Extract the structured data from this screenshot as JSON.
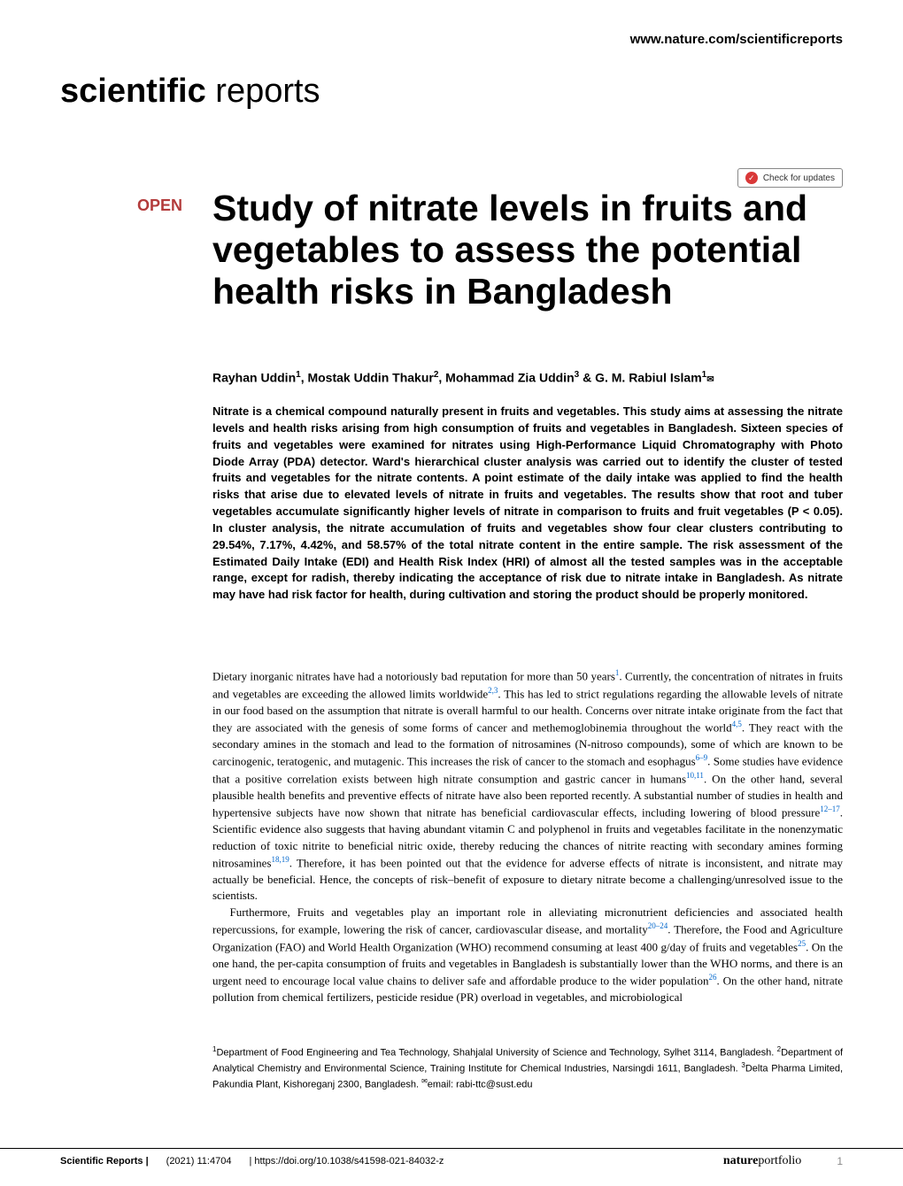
{
  "header": {
    "url": "www.nature.com/scientificreports",
    "logo_bold": "scientific",
    "logo_light": " reports",
    "check_updates": "Check for updates",
    "open_badge": "OPEN"
  },
  "title": "Study of nitrate levels in fruits and vegetables to assess the potential health risks in Bangladesh",
  "authors": {
    "a1_name": "Rayhan Uddin",
    "a1_sup": "1",
    "a2_name": "Mostak Uddin Thakur",
    "a2_sup": "2",
    "a3_name": "Mohammad Zia Uddin",
    "a3_sup": "3",
    "a4_name": "G. M. Rabiul Islam",
    "a4_sup": "1",
    "corr_symbol": "✉"
  },
  "abstract": "Nitrate is a chemical compound naturally present in fruits and vegetables. This study aims at assessing the nitrate levels and health risks arising from high consumption of fruits and vegetables in Bangladesh. Sixteen species of fruits and vegetables were examined for nitrates using High-Performance Liquid Chromatography with Photo Diode Array (PDA) detector. Ward's hierarchical cluster analysis was carried out to identify the cluster of tested fruits and vegetables for the nitrate contents. A point estimate of the daily intake was applied to find the health risks that arise due to elevated levels of nitrate in fruits and vegetables. The results show that root and tuber vegetables accumulate significantly higher levels of nitrate in comparison to fruits and fruit vegetables (P < 0.05). In cluster analysis, the nitrate accumulation of fruits and vegetables show four clear clusters contributing to 29.54%, 7.17%, 4.42%, and 58.57% of the total nitrate content in the entire sample. The risk assessment of the Estimated Daily Intake (EDI) and Health Risk Index (HRI) of almost all the tested samples was in the acceptable range, except for radish, thereby indicating the acceptance of risk due to nitrate intake in Bangladesh. As nitrate may have had risk factor for health, during cultivation and storing the product should be properly monitored.",
  "body": {
    "p1_a": "Dietary inorganic nitrates have had a notoriously bad reputation for more than 50 years",
    "p1_ref1": "1",
    "p1_b": ". Currently, the concentration of nitrates in fruits and vegetables are exceeding the allowed limits worldwide",
    "p1_ref2": "2,3",
    "p1_c": ". This has led to strict regulations regarding the allowable levels of nitrate in our food based on the assumption that nitrate is overall harmful to our health. Concerns over nitrate intake originate from the fact that they are associated with the genesis of some forms of cancer and methemoglobinemia throughout the world",
    "p1_ref3": "4,5",
    "p1_d": ". They react with the secondary amines in the stomach and lead to the formation of nitrosamines (N-nitroso compounds), some of which are known to be carcinogenic, teratogenic, and mutagenic. This increases the risk of cancer to the stomach and esophagus",
    "p1_ref4": "6–9",
    "p1_e": ". Some studies have evidence that a positive correlation exists between high nitrate consumption and gastric cancer in humans",
    "p1_ref5": "10,11",
    "p1_f": ". On the other hand, several plausible health benefits and preventive effects of nitrate have also been reported recently. A substantial number of studies in health and hypertensive subjects have now shown that nitrate has beneficial cardiovascular effects, including lowering of blood pressure",
    "p1_ref6": "12–17",
    "p1_g": ". Scientific evidence also suggests that having abundant vitamin C and polyphenol in fruits and vegetables facilitate in the nonenzymatic reduction of toxic nitrite to beneficial nitric oxide, thereby reducing the chances of nitrite reacting with secondary amines forming nitrosamines",
    "p1_ref7": "18,19",
    "p1_h": ". Therefore, it has been pointed out that the evidence for adverse effects of nitrate is inconsistent, and nitrate may actually be beneficial. Hence, the concepts of risk–benefit of exposure to dietary nitrate become a challenging/unresolved issue to the scientists.",
    "p2_a": "Furthermore, Fruits and vegetables play an important role in alleviating micronutrient deficiencies and associated health repercussions, for example, lowering the risk of cancer, cardiovascular disease, and mortality",
    "p2_ref1": "20–24",
    "p2_b": ". Therefore, the Food and Agriculture Organization (FAO) and World Health Organization (WHO) recommend consuming at least 400 g/day of fruits and vegetables",
    "p2_ref2": "25",
    "p2_c": ". On the one hand, the per-capita consumption of fruits and vegetables in Bangladesh is substantially lower than the WHO norms, and there is an urgent need to encourage local value chains to deliver safe and affordable produce to the wider population",
    "p2_ref3": "26",
    "p2_d": ". On the other hand, nitrate pollution from chemical fertilizers, pesticide residue (PR) overload in vegetables, and microbiological"
  },
  "affiliations": {
    "aff1_sup": "1",
    "aff1": "Department of Food Engineering and Tea Technology, Shahjalal University of Science and Technology, Sylhet 3114, Bangladesh. ",
    "aff2_sup": "2",
    "aff2": "Department of Analytical Chemistry and Environmental Science, Training Institute for Chemical Industries, Narsingdi 1611, Bangladesh. ",
    "aff3_sup": "3",
    "aff3": "Delta Pharma Limited, Pakundia Plant, Kishoreganj 2300, Bangladesh. ",
    "corr_sup": "✉",
    "corr": "email: rabi-ttc@sust.edu"
  },
  "footer": {
    "journal": "Scientific Reports |",
    "citation": "(2021) 11:4704",
    "doi": "| https://doi.org/10.1038/s41598-021-84032-z",
    "portfolio_bold": "nature",
    "portfolio_light": "portfolio",
    "page": "1"
  },
  "colors": {
    "open_badge": "#b33b3b",
    "ref_link": "#0066cc",
    "check_icon_bg": "#d93838",
    "text": "#000000",
    "page_num": "#888888"
  }
}
